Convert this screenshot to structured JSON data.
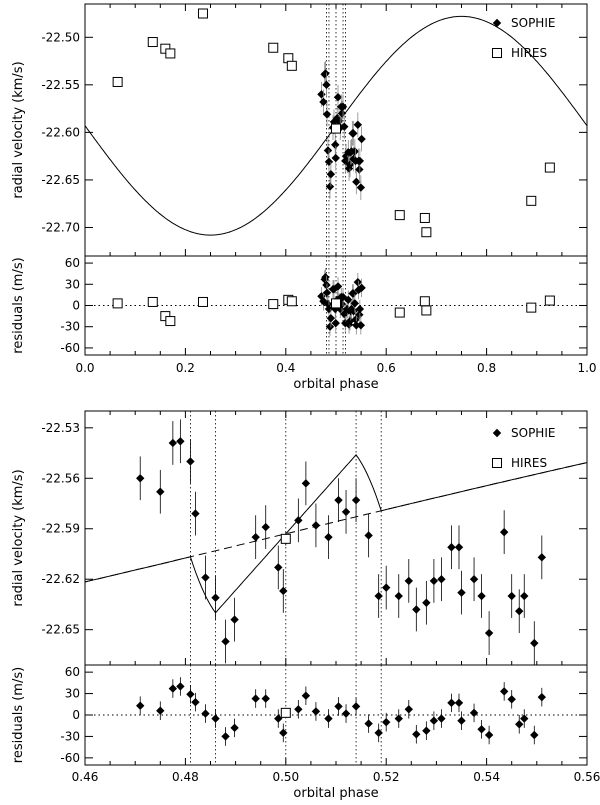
{
  "chart_data": [
    {
      "type": "scatter",
      "panel": "full-orbit",
      "legend": {
        "placement": "top-right",
        "entries": [
          "SOPHIE",
          "HIRES"
        ]
      },
      "ylabel_top": "radial velocity (km/s)",
      "ylabel_bottom": "residuals (m/s)",
      "xlabel": "orbital phase",
      "xlim": [
        0.0,
        1.0
      ],
      "ylim_top": [
        -22.73,
        -22.465
      ],
      "ylim_bottom": [
        -70,
        70
      ],
      "xticks": [
        "0.0",
        "0.2",
        "0.4",
        "0.6",
        "0.8",
        "1.0"
      ],
      "xtick_values": [
        0.0,
        0.2,
        0.4,
        0.6,
        0.8,
        1.0
      ],
      "yticks_top": [
        "-22.50",
        "-22.55",
        "-22.60",
        "-22.65",
        "-22.70"
      ],
      "ytick_values_top": [
        -22.5,
        -22.55,
        -22.6,
        -22.65,
        -22.7
      ],
      "yticks_bottom": [
        "60",
        "30",
        "0",
        "-30",
        "-60"
      ],
      "ytick_values_bottom": [
        60,
        30,
        0,
        -30,
        -60
      ],
      "model": {
        "gamma": -22.593,
        "K": 0.115,
        "phase0": 0.0
      },
      "transit_lines": [
        0.481,
        0.486,
        0.5,
        0.514,
        0.519
      ],
      "hires": [
        {
          "x": 0.065,
          "y": -22.547,
          "r": 3
        },
        {
          "x": 0.135,
          "y": -22.505,
          "r": 5
        },
        {
          "x": 0.16,
          "y": -22.512,
          "r": -15
        },
        {
          "x": 0.17,
          "y": -22.517,
          "r": -22
        },
        {
          "x": 0.235,
          "y": -22.475,
          "r": 5
        },
        {
          "x": 0.375,
          "y": -22.511,
          "r": 2
        },
        {
          "x": 0.405,
          "y": -22.522,
          "r": 8
        },
        {
          "x": 0.412,
          "y": -22.53,
          "r": 6
        },
        {
          "x": 0.5,
          "y": -22.596,
          "r": 3
        },
        {
          "x": 0.627,
          "y": -22.687,
          "r": -10
        },
        {
          "x": 0.677,
          "y": -22.69,
          "r": 6
        },
        {
          "x": 0.68,
          "y": -22.705,
          "r": -7
        },
        {
          "x": 0.889,
          "y": -22.672,
          "r": -3
        },
        {
          "x": 0.926,
          "y": -22.637,
          "r": 7
        }
      ],
      "sophie": [
        {
          "x": 0.471,
          "y": -22.56,
          "r": 13
        },
        {
          "x": 0.475,
          "y": -22.568,
          "r": 6
        },
        {
          "x": 0.4775,
          "y": -22.539,
          "r": 37
        },
        {
          "x": 0.479,
          "y": -22.538,
          "r": 40
        },
        {
          "x": 0.481,
          "y": -22.55,
          "r": 29
        },
        {
          "x": 0.482,
          "y": -22.581,
          "r": 18
        },
        {
          "x": 0.484,
          "y": -22.619,
          "r": 2
        },
        {
          "x": 0.486,
          "y": -22.631,
          "r": -5
        },
        {
          "x": 0.488,
          "y": -22.657,
          "r": -30
        },
        {
          "x": 0.4898,
          "y": -22.644,
          "r": -18
        },
        {
          "x": 0.494,
          "y": -22.595,
          "r": 23
        },
        {
          "x": 0.496,
          "y": -22.589,
          "r": 23
        },
        {
          "x": 0.4985,
          "y": -22.613,
          "r": -5
        },
        {
          "x": 0.4995,
          "y": -22.627,
          "r": -25
        },
        {
          "x": 0.5025,
          "y": -22.585,
          "r": 8
        },
        {
          "x": 0.504,
          "y": -22.563,
          "r": 27
        },
        {
          "x": 0.506,
          "y": -22.588,
          "r": 5
        },
        {
          "x": 0.5085,
          "y": -22.595,
          "r": -5
        },
        {
          "x": 0.5105,
          "y": -22.573,
          "r": 12
        },
        {
          "x": 0.512,
          "y": -22.58,
          "r": 2
        },
        {
          "x": 0.514,
          "y": -22.573,
          "r": 12
        },
        {
          "x": 0.5165,
          "y": -22.594,
          "r": -12
        },
        {
          "x": 0.5185,
          "y": -22.63,
          "r": -25
        },
        {
          "x": 0.52,
          "y": -22.625,
          "r": -10
        },
        {
          "x": 0.5225,
          "y": -22.63,
          "r": -5
        },
        {
          "x": 0.5245,
          "y": -22.621,
          "r": 8
        },
        {
          "x": 0.526,
          "y": -22.638,
          "r": -27
        },
        {
          "x": 0.528,
          "y": -22.634,
          "r": -22
        },
        {
          "x": 0.5295,
          "y": -22.621,
          "r": -8
        },
        {
          "x": 0.531,
          "y": -22.62,
          "r": -5
        },
        {
          "x": 0.533,
          "y": -22.601,
          "r": 17
        },
        {
          "x": 0.5345,
          "y": -22.601,
          "r": 17
        },
        {
          "x": 0.535,
          "y": -22.628,
          "r": -8
        },
        {
          "x": 0.5375,
          "y": -22.62,
          "r": 3
        },
        {
          "x": 0.539,
          "y": -22.63,
          "r": -20
        },
        {
          "x": 0.5405,
          "y": -22.652,
          "r": -28
        },
        {
          "x": 0.5435,
          "y": -22.592,
          "r": 33
        },
        {
          "x": 0.545,
          "y": -22.63,
          "r": 22
        },
        {
          "x": 0.5465,
          "y": -22.639,
          "r": -13
        },
        {
          "x": 0.5475,
          "y": -22.63,
          "r": -5
        },
        {
          "x": 0.5495,
          "y": -22.658,
          "r": -28
        },
        {
          "x": 0.551,
          "y": -22.607,
          "r": 25
        }
      ]
    },
    {
      "type": "scatter",
      "panel": "transit-zoom",
      "legend": {
        "placement": "top-right",
        "entries": [
          "SOPHIE",
          "HIRES"
        ]
      },
      "ylabel_top": "radial velocity (km/s)",
      "ylabel_bottom": "residuals (m/s)",
      "xlabel": "orbital phase",
      "xlim": [
        0.46,
        0.56
      ],
      "ylim_top": [
        -22.671,
        -22.52
      ],
      "ylim_bottom": [
        -70,
        70
      ],
      "xticks": [
        "0.46",
        "0.48",
        "0.50",
        "0.52",
        "0.54",
        "0.56"
      ],
      "xtick_values": [
        0.46,
        0.48,
        0.5,
        0.52,
        0.54,
        0.56
      ],
      "yticks_top": [
        "-22.53",
        "-22.56",
        "-22.59",
        "-22.62",
        "-22.65"
      ],
      "ytick_values_top": [
        -22.53,
        -22.56,
        -22.59,
        -22.62,
        -22.65
      ],
      "yticks_bottom": [
        "60",
        "30",
        "0",
        "-30",
        "-60"
      ],
      "ytick_values_bottom": [
        60,
        30,
        0,
        -30,
        -60
      ],
      "transit_lines": [
        0.481,
        0.486,
        0.5,
        0.514,
        0.519
      ],
      "rm_model": {
        "amplitude": 0.05,
        "t1": 0.481,
        "t2": 0.486,
        "t3": 0.514,
        "t4": 0.519
      }
    }
  ]
}
